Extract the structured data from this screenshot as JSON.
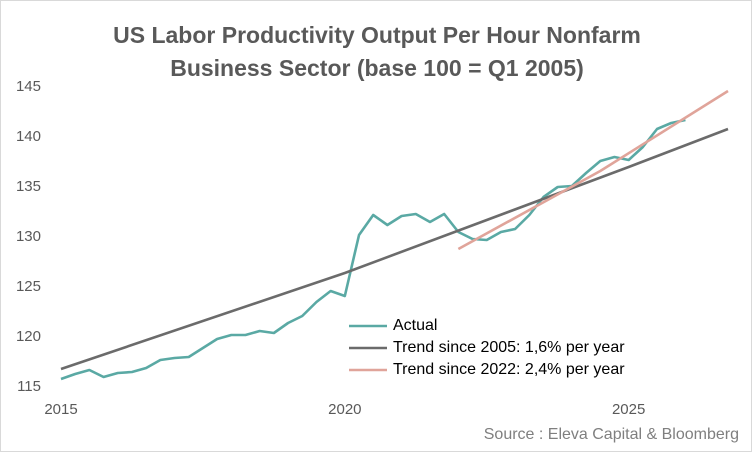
{
  "chart_data": {
    "type": "line",
    "title": "US Labor Productivity Output Per Hour Nonfarm Business Sector (base 100 = Q1 2005)",
    "annotation": "Source : Eleva Capital & Bloomberg",
    "xlim": [
      2015,
      2026.75
    ],
    "xticks": [
      2015,
      2020,
      2025
    ],
    "ylim": [
      115,
      145
    ],
    "yticks": [
      115,
      120,
      125,
      130,
      135,
      140,
      145
    ],
    "grid": false,
    "legend": "lower right",
    "series": [
      {
        "name": "Actual",
        "color": "#5aa9a4",
        "x": [
          2015,
          2015.25,
          2015.5,
          2015.75,
          2016,
          2016.25,
          2016.5,
          2016.75,
          2017,
          2017.25,
          2017.5,
          2017.75,
          2018,
          2018.25,
          2018.5,
          2018.75,
          2019,
          2019.25,
          2019.5,
          2019.75,
          2020,
          2020.25,
          2020.5,
          2020.75,
          2021,
          2021.25,
          2021.5,
          2021.75,
          2022,
          2022.25,
          2022.5,
          2022.75,
          2023,
          2023.25,
          2023.5,
          2023.75,
          2024,
          2024.25,
          2024.5,
          2024.75,
          2025,
          2025.25,
          2025.5,
          2025.75,
          2026
        ],
        "values": [
          115.8,
          116.3,
          116.7,
          116.0,
          116.4,
          116.5,
          116.9,
          117.7,
          117.9,
          118.0,
          118.9,
          119.8,
          120.2,
          120.2,
          120.6,
          120.4,
          121.4,
          122.1,
          123.5,
          124.6,
          124.1,
          130.2,
          132.2,
          131.2,
          132.1,
          132.3,
          131.5,
          132.3,
          130.5,
          129.8,
          129.7,
          130.5,
          130.8,
          132.2,
          134.0,
          135.0,
          135.1,
          136.4,
          137.6,
          138.0,
          137.7,
          139.0,
          140.8,
          141.4,
          141.7
        ]
      },
      {
        "name": "Trend since 2005: 1,6% per year",
        "color": "#6b6b6b",
        "x": [
          2015,
          2020,
          2025,
          2026.75
        ],
        "values": [
          116.8,
          126.4,
          137.0,
          140.8
        ]
      },
      {
        "name": "Trend since 2022: 2,4% per year",
        "color": "#e0a49a",
        "x": [
          2022,
          2024.5,
          2026.75
        ],
        "values": [
          128.8,
          136.6,
          144.6
        ]
      }
    ]
  }
}
